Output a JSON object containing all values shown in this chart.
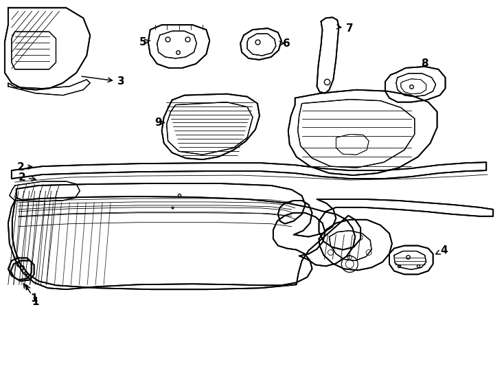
{
  "bg_color": "#ffffff",
  "line_color": "#000000",
  "figsize": [
    7.34,
    5.4
  ],
  "dpi": 100,
  "lw_main": 1.3,
  "lw_thin": 0.6,
  "lw_med": 0.9
}
